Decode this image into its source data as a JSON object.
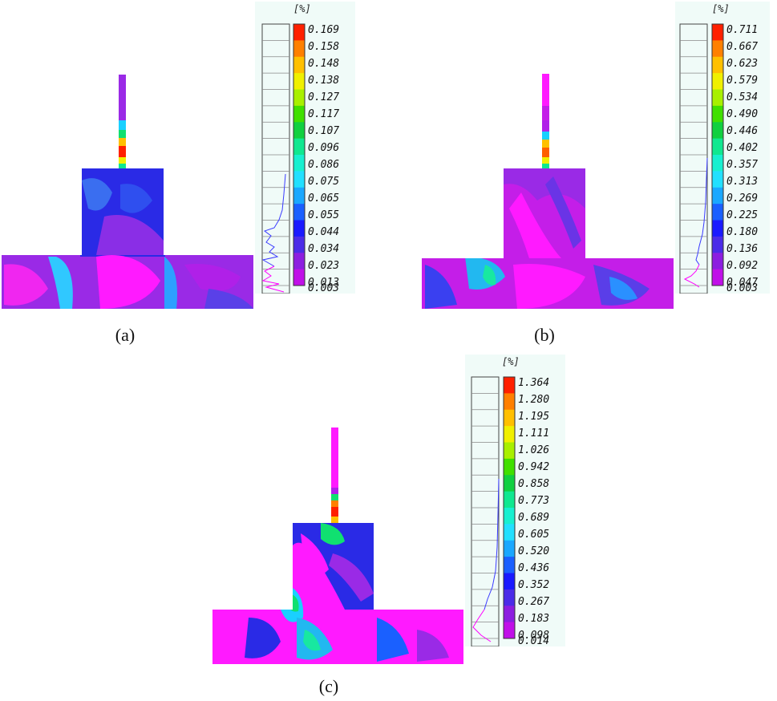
{
  "colors": {
    "scale": [
      "#ff00ff",
      "#c010e8",
      "#8c1ee0",
      "#4b2ce8",
      "#1a1aff",
      "#1a60ff",
      "#1aa8ff",
      "#22e0ff",
      "#18f0d0",
      "#10e890",
      "#10d040",
      "#40e000",
      "#a8f000",
      "#f0f000",
      "#ffc000",
      "#ff8000",
      "#ff2000"
    ]
  },
  "panels": [
    {
      "caption": "(a)",
      "unit": "[%]",
      "labels": [
        "0.169",
        "0.158",
        "0.148",
        "0.138",
        "0.127",
        "0.117",
        "0.107",
        "0.096",
        "0.086",
        "0.075",
        "0.065",
        "0.055",
        "0.044",
        "0.034",
        "0.023",
        "0.013",
        "0.003"
      ]
    },
    {
      "caption": "(b)",
      "unit": "[%]",
      "labels": [
        "0.711",
        "0.667",
        "0.623",
        "0.579",
        "0.534",
        "0.490",
        "0.446",
        "0.402",
        "0.357",
        "0.313",
        "0.269",
        "0.225",
        "0.180",
        "0.136",
        "0.092",
        "0.047",
        "0.003"
      ]
    },
    {
      "caption": "(c)",
      "unit": "[%]",
      "labels": [
        "1.364",
        "1.280",
        "1.195",
        "1.111",
        "1.026",
        "0.942",
        "0.858",
        "0.773",
        "0.689",
        "0.605",
        "0.520",
        "0.436",
        "0.352",
        "0.267",
        "0.183",
        "0.098",
        "0.014"
      ]
    }
  ]
}
